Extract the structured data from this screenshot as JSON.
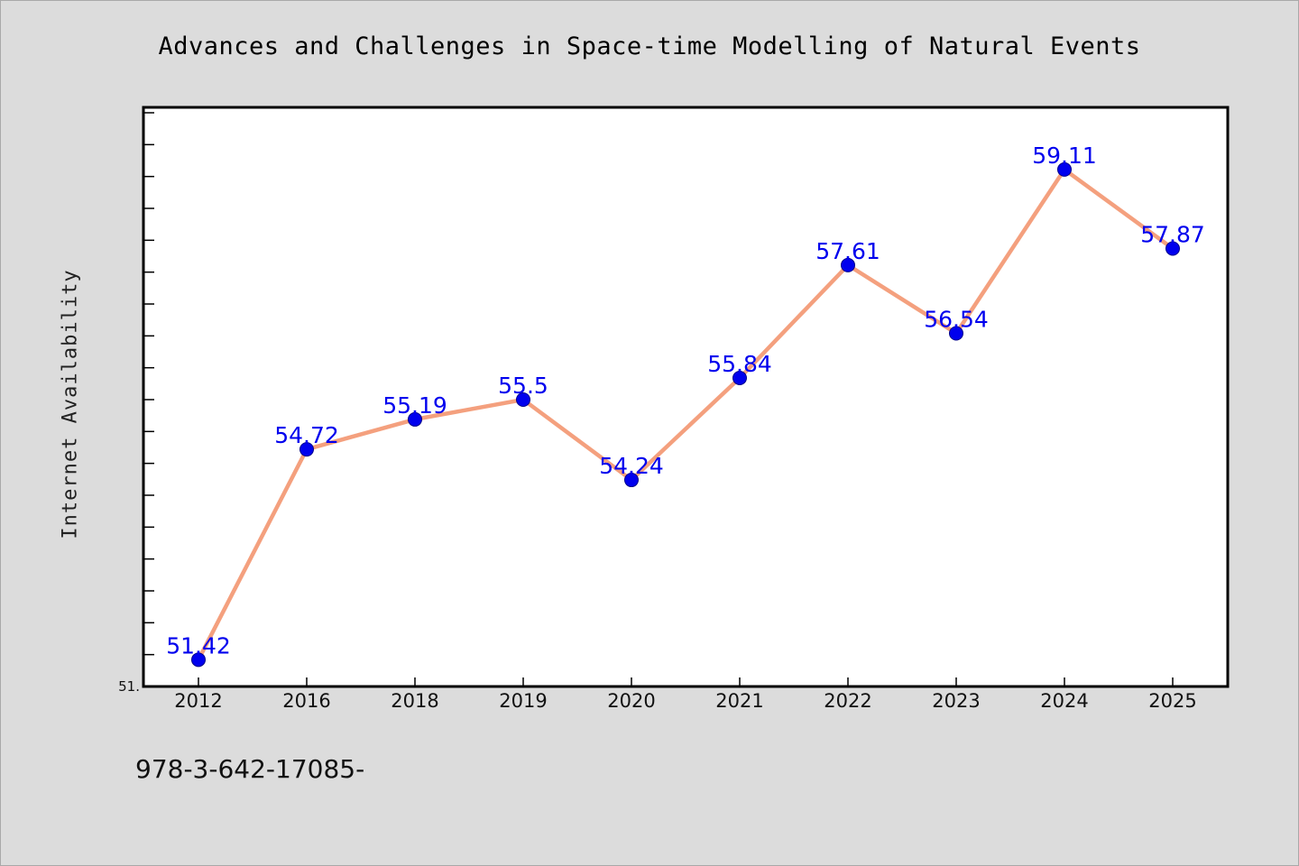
{
  "chart_data": {
    "type": "line",
    "title": "Advances and Challenges in Space-time Modelling of Natural Events",
    "xlabel": "",
    "ylabel": "Internet Availability",
    "categories": [
      "2012",
      "2016",
      "2018",
      "2019",
      "2020",
      "2021",
      "2022",
      "2023",
      "2024",
      "2025"
    ],
    "values": [
      51.42,
      54.72,
      55.19,
      55.5,
      54.24,
      55.84,
      57.61,
      56.54,
      59.11,
      57.87
    ],
    "data_labels": [
      "51.42",
      "54.72",
      "55.19",
      "55.5",
      "54.24",
      "55.84",
      "57.61",
      "56.54",
      "59.11",
      "57.87"
    ],
    "ylim": [
      51,
      60
    ],
    "y_min_label": "51.",
    "grid": false,
    "legend": "none",
    "colors": {
      "line": "#f4a07e",
      "marker": "#0000ee",
      "label": "#0000ee",
      "plot_background": "#ffffff",
      "page_background": "#dcdcdc"
    }
  },
  "footer": {
    "text": "978-3-642-17085-"
  }
}
